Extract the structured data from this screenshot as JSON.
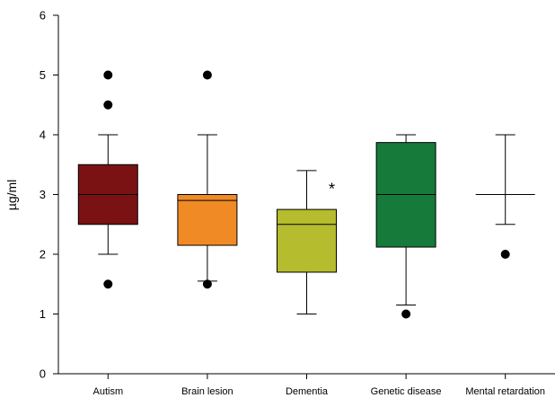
{
  "chart_data": {
    "type": "box",
    "title": "",
    "xlabel": "",
    "ylabel": "µg/ml",
    "ylim": [
      0,
      6
    ],
    "yticks": [
      0,
      1,
      2,
      3,
      4,
      5,
      6
    ],
    "grid": false,
    "categories": [
      "Autism",
      "Brain lesion",
      "Dementia",
      "Genetic disease",
      "Mental retardation"
    ],
    "boxes": [
      {
        "category": "Autism",
        "color": "#7a1214",
        "whisker_low": 2.0,
        "q1": 2.5,
        "median": 3.0,
        "q3": 3.5,
        "whisker_high": 4.0,
        "outliers": [
          1.5,
          4.5,
          5.0
        ]
      },
      {
        "category": "Brain lesion",
        "color": "#f08a24",
        "whisker_low": 1.55,
        "q1": 2.15,
        "median": 2.9,
        "q3": 3.0,
        "whisker_high": 4.0,
        "outliers": [
          1.5,
          5.0
        ]
      },
      {
        "category": "Dementia",
        "color": "#b5bc2e",
        "whisker_low": 1.0,
        "q1": 1.7,
        "median": 2.5,
        "q3": 2.75,
        "whisker_high": 3.4,
        "outliers": []
      },
      {
        "category": "Genetic disease",
        "color": "#167a3a",
        "whisker_low": 1.15,
        "q1": 2.12,
        "median": 3.0,
        "q3": 3.87,
        "whisker_high": 4.0,
        "outliers": [
          1.0
        ]
      },
      {
        "category": "Mental retardation",
        "color": "#ffffff",
        "whisker_low": 2.5,
        "q1": 3.0,
        "median": 3.0,
        "q3": 3.0,
        "whisker_high": 4.0,
        "outliers": [
          2.0
        ]
      }
    ],
    "annotations": [
      {
        "text": "*",
        "category": "Dementia",
        "y": 3.15
      }
    ]
  }
}
